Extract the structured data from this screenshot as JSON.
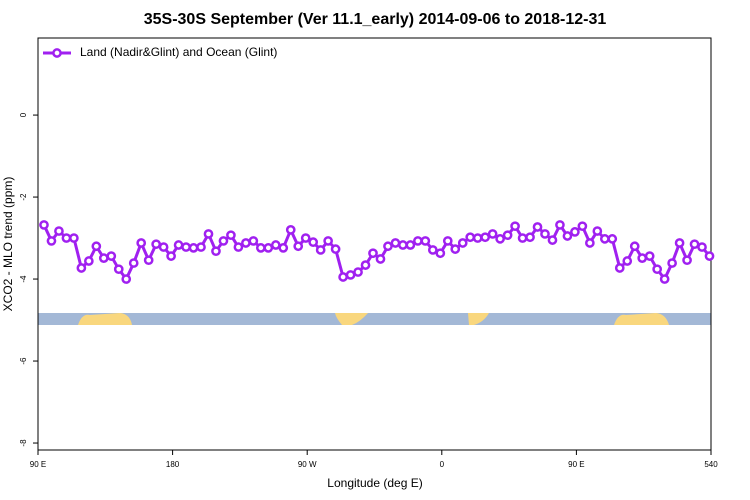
{
  "chart_data": {
    "type": "line",
    "title": "35S-30S September (Ver 11.1_early)   2014-09-06 to 2018-12-31",
    "x_label": "Longitude (deg E)",
    "y_label": "XCO2 - MLO trend (ppm)",
    "x": [
      94,
      99,
      104,
      109,
      114,
      119,
      124,
      129,
      134,
      139,
      144,
      149,
      154,
      159,
      164,
      169,
      174,
      179,
      184,
      189,
      194,
      199,
      204,
      209,
      214,
      219,
      224,
      229,
      234,
      239,
      244,
      249,
      254,
      259,
      264,
      269,
      274,
      279,
      284,
      289,
      294,
      299,
      304,
      309,
      314,
      319,
      324,
      329,
      334,
      339,
      344,
      349,
      354,
      359,
      364,
      369,
      374,
      379,
      384,
      389,
      394,
      399,
      404,
      409,
      414,
      419,
      424,
      429,
      434,
      439,
      444,
      449,
      454,
      459,
      464,
      469,
      474,
      479,
      484,
      489,
      494,
      499,
      504,
      509,
      514,
      519,
      524,
      529,
      534,
      539
    ],
    "series": [
      {
        "name": "Land (Nadir&Glint) and Ocean (Glint)",
        "color": "#a020f0",
        "values": [
          -2.68,
          -3.07,
          -2.83,
          -3.0,
          -3.0,
          -3.73,
          -3.56,
          -3.2,
          -3.49,
          -3.44,
          -3.76,
          -4.0,
          -3.61,
          -3.12,
          -3.54,
          -3.15,
          -3.22,
          -3.44,
          -3.17,
          -3.22,
          -3.24,
          -3.22,
          -2.9,
          -3.32,
          -3.07,
          -2.93,
          -3.22,
          -3.12,
          -3.07,
          -3.24,
          -3.24,
          -3.17,
          -3.24,
          -2.8,
          -3.2,
          -3.0,
          -3.1,
          -3.29,
          -3.07,
          -3.27,
          -3.95,
          -3.9,
          -3.83,
          -3.66,
          -3.37,
          -3.51,
          -3.2,
          -3.12,
          -3.17,
          -3.17,
          -3.07,
          -3.07,
          -3.29,
          -3.37,
          -3.07,
          -3.27,
          -3.12,
          -2.98,
          -3.0,
          -2.98,
          -2.9,
          -3.02,
          -2.93,
          -2.71,
          -3.0,
          -2.98,
          -2.73,
          -2.9,
          -3.05,
          -2.68,
          -2.95,
          -2.85,
          -2.71,
          -3.12,
          -2.83,
          -3.02,
          -3.02,
          -3.73,
          -3.56,
          -3.2,
          -3.49,
          -3.44,
          -3.76,
          -4.0,
          -3.61,
          -3.12,
          -3.54,
          -3.15,
          -3.22,
          -3.44
        ]
      }
    ],
    "xlim": [
      90,
      540
    ],
    "xticks": [
      {
        "value": 90,
        "label": "90 E"
      },
      180,
      {
        "value": 270,
        "label": "90 W"
      },
      {
        "value": 360,
        "label": "0"
      },
      {
        "value": 450,
        "label": "90 E"
      },
      540
    ],
    "ylim": [
      -8.17,
      1.88
    ],
    "yticks": [
      0,
      -2,
      -4,
      -6,
      -8
    ],
    "legend": "top-left"
  }
}
